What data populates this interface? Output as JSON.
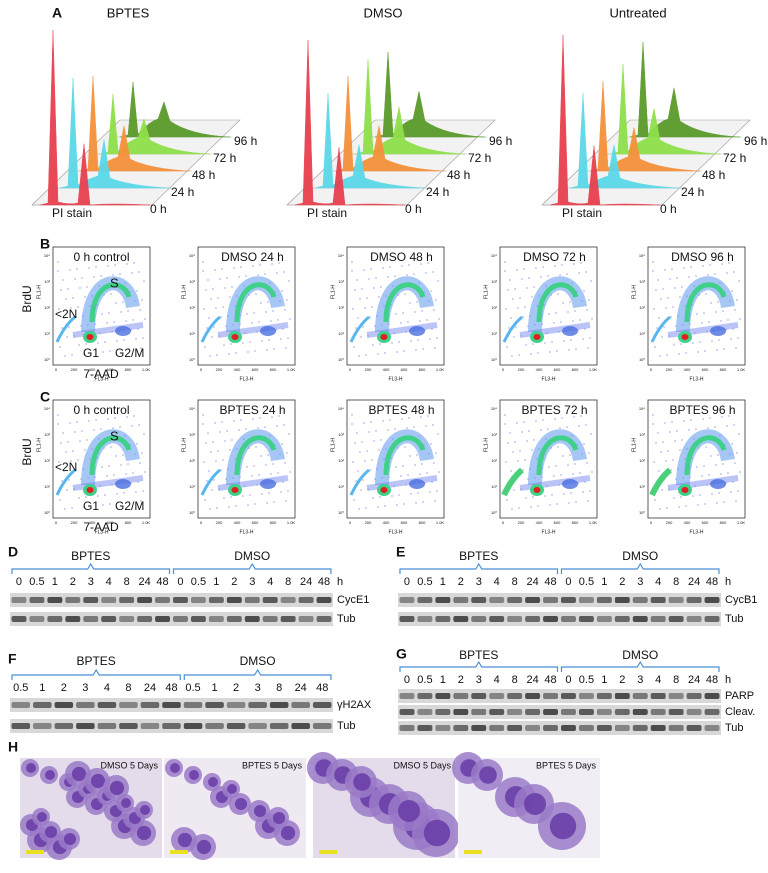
{
  "A": {
    "label": "A",
    "conditions": [
      "BPTES",
      "DMSO",
      "Untreated"
    ],
    "timepoints": [
      "0 h",
      "24 h",
      "48 h",
      "72 h",
      "96 h"
    ],
    "x_axis": "PI stain"
  },
  "B": {
    "label": "B",
    "plots": [
      "0 h control",
      "DMSO 24 h",
      "DMSO 48 h",
      "DMSO 72 h",
      "DMSO 96 h"
    ]
  },
  "C": {
    "label": "C",
    "plots": [
      "0 h control",
      "BPTES 24 h",
      "BPTES 48 h",
      "BPTES 72 h",
      "BPTES 96 h"
    ]
  },
  "flow_axes": {
    "y_label": "BrdU",
    "x_label": "7-AAD",
    "y_channel": "FL1-H",
    "x_channel": "FL3-H",
    "gates": [
      "S",
      "<2N",
      "G1",
      "G2/M"
    ],
    "x_ticks": [
      "0",
      "200",
      "400",
      "600",
      "800",
      "1.0K"
    ],
    "y_ticks": [
      "10⁰",
      "10¹",
      "10²",
      "10³",
      "10⁴"
    ]
  },
  "D": {
    "label": "D",
    "groups": [
      "BPTES",
      "DMSO"
    ],
    "lanes": [
      [
        "0",
        "0.5",
        "1",
        "2",
        "3",
        "4",
        "8",
        "24",
        "48"
      ],
      [
        "0",
        "0.5",
        "1",
        "2",
        "3",
        "4",
        "8",
        "24",
        "48"
      ]
    ],
    "unit": "h",
    "bands": [
      "CycE1",
      "Tub"
    ]
  },
  "E": {
    "label": "E",
    "groups": [
      "BPTES",
      "DMSO"
    ],
    "lanes": [
      [
        "0",
        "0.5",
        "1",
        "2",
        "3",
        "4",
        "8",
        "24",
        "48"
      ],
      [
        "0",
        "0.5",
        "1",
        "2",
        "3",
        "4",
        "8",
        "24",
        "48"
      ]
    ],
    "unit": "h",
    "bands": [
      "CycB1",
      "Tub"
    ]
  },
  "F": {
    "label": "F",
    "groups": [
      "BPTES",
      "DMSO"
    ],
    "lanes": [
      [
        "0.5",
        "1",
        "2",
        "3",
        "4",
        "8",
        "24",
        "48"
      ],
      [
        "0.5",
        "1",
        "2",
        "3",
        "8",
        "24",
        "48"
      ]
    ],
    "bands": [
      "γH2AX",
      "Tub"
    ]
  },
  "G": {
    "label": "G",
    "groups": [
      "BPTES",
      "DMSO"
    ],
    "lanes": [
      [
        "0",
        "0.5",
        "1",
        "2",
        "3",
        "4",
        "8",
        "24",
        "48"
      ],
      [
        "0",
        "0.5",
        "1",
        "2",
        "3",
        "4",
        "8",
        "24",
        "48"
      ]
    ],
    "unit": "h",
    "bands": [
      "PARP",
      "Cleav.",
      "Tub"
    ]
  },
  "H": {
    "label": "H",
    "captions": [
      "DMSO 5 Days",
      "BPTES 5 Days",
      "DMSO 5 Days",
      "BPTES 5 Days"
    ]
  }
}
